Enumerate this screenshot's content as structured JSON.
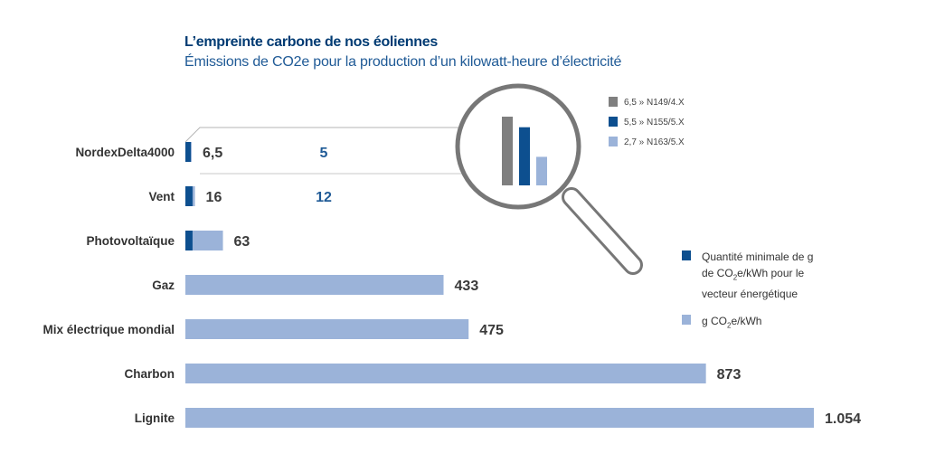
{
  "title": "L’empreinte carbone de nos éoliennes",
  "subtitle_pre": "Émissions de CO",
  "subtitle_sub": "2",
  "subtitle_post": "e pour la production d’un kilowatt-heure d’électricité",
  "colors": {
    "light": "#9bb3d9",
    "dark": "#0d4f8f",
    "gray": "#7f7f7f",
    "lens": "#777777"
  },
  "chart_data": {
    "type": "bar",
    "orientation": "horizontal",
    "title": "L’empreinte carbone de nos éoliennes",
    "categories": [
      "NordexDelta4000",
      "Vent",
      "Photovoltaïque",
      "Gaz",
      "Mix électrique mondial",
      "Charbon",
      "Lignite"
    ],
    "series": [
      {
        "name": "g CO2e/kWh",
        "values": [
          6.5,
          16,
          63,
          433,
          475,
          873,
          1054
        ]
      },
      {
        "name": "Quantité minimale de g de CO2e/kWh pour le vecteur énergétique",
        "values": [
          5,
          12,
          12,
          null,
          null,
          null,
          null
        ]
      }
    ],
    "value_labels": [
      "6,5",
      "16",
      "63",
      "433",
      "475",
      "873",
      "1.054"
    ],
    "min_labels": [
      "5",
      "12",
      "",
      "",
      "",
      "",
      ""
    ],
    "xlim": [
      0,
      1054
    ],
    "grid": false,
    "inset": {
      "type": "bar",
      "values": [
        6.5,
        5.5,
        2.7
      ],
      "labels": [
        "6,5 » N149/4.X",
        "5,5 » N155/5.X",
        "2,7 » N163/5.X"
      ],
      "colors": [
        "#7f7f7f",
        "#0d4f8f",
        "#9bb3d9"
      ]
    }
  },
  "legend": {
    "min": {
      "line1": "Quantité minimale de g",
      "line2_pre": "de CO",
      "line2_sub": "2",
      "line2_post": "e/kWh pour le",
      "line3": "vecteur énergétique"
    },
    "total": {
      "pre": "g CO",
      "sub": "2",
      "post": "e/kWh"
    }
  }
}
